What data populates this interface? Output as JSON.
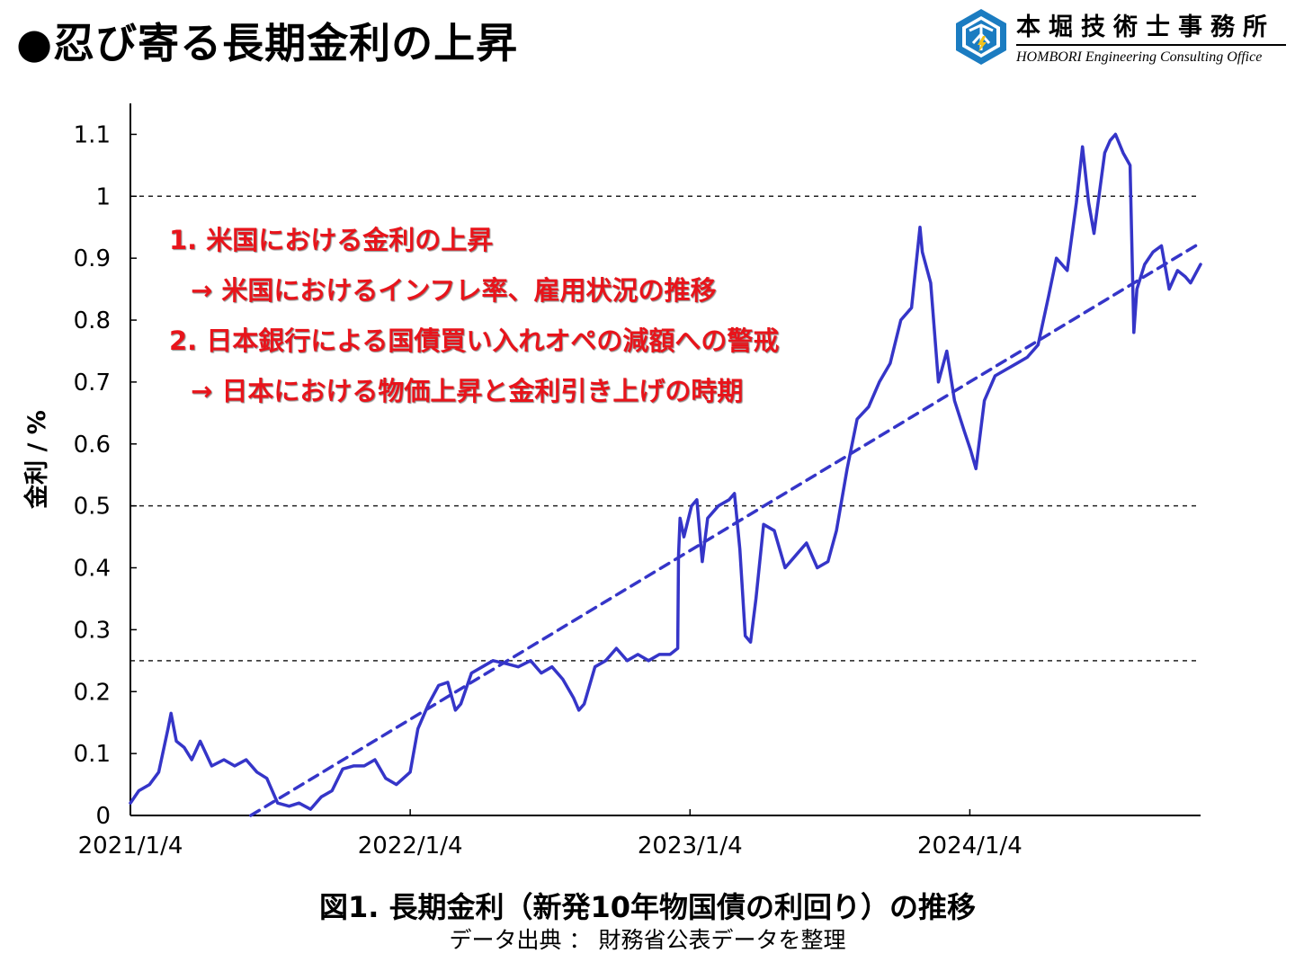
{
  "page_title": "●忍び寄る長期金利の上昇",
  "logo": {
    "name_ja": "本堀技術士事務所",
    "name_en": "HOMBORI Engineering Consulting Office",
    "colors": {
      "primary": "#1b7cc1",
      "accent": "#f3c21b"
    }
  },
  "annotations": [
    "1. 米国における金利の上昇",
    "→ 米国におけるインフレ率、雇用状況の推移",
    "2. 日本銀行による国債買い入れオペの減額への警戒",
    "→ 日本における物価上昇と金利引き上げの時期"
  ],
  "caption": "図1. 長期金利（新発10年物国債の利回り）の推移",
  "source": "データ出典 ： 財務省公表データを整理",
  "chart_data": {
    "type": "line",
    "title": "",
    "xlabel": "",
    "ylabel": "金利 / %",
    "x_ticks": [
      "2021/1/4",
      "2022/1/4",
      "2023/1/4",
      "2024/1/4"
    ],
    "x_range": [
      "2021-01-04",
      "2024-10-31"
    ],
    "y_ticks": [
      "0",
      "0.1",
      "0.2",
      "0.3",
      "0.4",
      "0.5",
      "0.6",
      "0.7",
      "0.8",
      "0.9",
      "1",
      "1.1"
    ],
    "ylim": [
      0,
      1.15
    ],
    "reference_lines": [
      0.25,
      0.5,
      1.0
    ],
    "grid": false,
    "legend": "none",
    "colors": {
      "series": "#3535c8",
      "trend": "#3535c8",
      "reference": "#222222"
    },
    "series": [
      {
        "style": "solid",
        "points": [
          [
            "2021-01-04",
            0.02
          ],
          [
            "2021-01-15",
            0.04
          ],
          [
            "2021-01-29",
            0.05
          ],
          [
            "2021-02-10",
            0.07
          ],
          [
            "2021-02-22",
            0.14
          ],
          [
            "2021-02-26",
            0.165
          ],
          [
            "2021-03-05",
            0.12
          ],
          [
            "2021-03-15",
            0.11
          ],
          [
            "2021-03-25",
            0.09
          ],
          [
            "2021-04-05",
            0.12
          ],
          [
            "2021-04-20",
            0.08
          ],
          [
            "2021-05-06",
            0.09
          ],
          [
            "2021-05-20",
            0.08
          ],
          [
            "2021-06-04",
            0.09
          ],
          [
            "2021-06-18",
            0.07
          ],
          [
            "2021-07-01",
            0.06
          ],
          [
            "2021-07-15",
            0.02
          ],
          [
            "2021-07-30",
            0.015
          ],
          [
            "2021-08-12",
            0.02
          ],
          [
            "2021-08-27",
            0.01
          ],
          [
            "2021-09-10",
            0.03
          ],
          [
            "2021-09-24",
            0.04
          ],
          [
            "2021-10-08",
            0.075
          ],
          [
            "2021-10-22",
            0.08
          ],
          [
            "2021-11-05",
            0.08
          ],
          [
            "2021-11-19",
            0.09
          ],
          [
            "2021-12-03",
            0.06
          ],
          [
            "2021-12-17",
            0.05
          ],
          [
            "2022-01-04",
            0.07
          ],
          [
            "2022-01-14",
            0.14
          ],
          [
            "2022-01-28",
            0.18
          ],
          [
            "2022-02-10",
            0.21
          ],
          [
            "2022-02-22",
            0.215
          ],
          [
            "2022-03-04",
            0.17
          ],
          [
            "2022-03-11",
            0.18
          ],
          [
            "2022-03-25",
            0.23
          ],
          [
            "2022-04-08",
            0.24
          ],
          [
            "2022-04-22",
            0.25
          ],
          [
            "2022-05-10",
            0.245
          ],
          [
            "2022-05-25",
            0.24
          ],
          [
            "2022-06-10",
            0.25
          ],
          [
            "2022-06-24",
            0.23
          ],
          [
            "2022-07-08",
            0.24
          ],
          [
            "2022-07-22",
            0.22
          ],
          [
            "2022-08-05",
            0.19
          ],
          [
            "2022-08-12",
            0.17
          ],
          [
            "2022-08-19",
            0.18
          ],
          [
            "2022-09-02",
            0.24
          ],
          [
            "2022-09-16",
            0.25
          ],
          [
            "2022-09-30",
            0.27
          ],
          [
            "2022-10-14",
            0.25
          ],
          [
            "2022-10-28",
            0.26
          ],
          [
            "2022-11-11",
            0.25
          ],
          [
            "2022-11-25",
            0.26
          ],
          [
            "2022-12-09",
            0.26
          ],
          [
            "2022-12-19",
            0.27
          ],
          [
            "2022-12-20",
            0.42
          ],
          [
            "2022-12-22",
            0.48
          ],
          [
            "2022-12-27",
            0.45
          ],
          [
            "2023-01-06",
            0.5
          ],
          [
            "2023-01-13",
            0.51
          ],
          [
            "2023-01-20",
            0.41
          ],
          [
            "2023-01-27",
            0.48
          ],
          [
            "2023-02-10",
            0.5
          ],
          [
            "2023-02-24",
            0.51
          ],
          [
            "2023-03-03",
            0.52
          ],
          [
            "2023-03-10",
            0.43
          ],
          [
            "2023-03-17",
            0.29
          ],
          [
            "2023-03-24",
            0.28
          ],
          [
            "2023-03-31",
            0.35
          ],
          [
            "2023-04-10",
            0.47
          ],
          [
            "2023-04-24",
            0.46
          ],
          [
            "2023-05-08",
            0.4
          ],
          [
            "2023-05-22",
            0.42
          ],
          [
            "2023-06-05",
            0.44
          ],
          [
            "2023-06-19",
            0.4
          ],
          [
            "2023-07-03",
            0.41
          ],
          [
            "2023-07-14",
            0.46
          ],
          [
            "2023-07-28",
            0.56
          ],
          [
            "2023-08-10",
            0.64
          ],
          [
            "2023-08-25",
            0.66
          ],
          [
            "2023-09-08",
            0.7
          ],
          [
            "2023-09-22",
            0.73
          ],
          [
            "2023-10-06",
            0.8
          ],
          [
            "2023-10-20",
            0.82
          ],
          [
            "2023-10-31",
            0.95
          ],
          [
            "2023-11-03",
            0.91
          ],
          [
            "2023-11-14",
            0.86
          ],
          [
            "2023-11-24",
            0.7
          ],
          [
            "2023-12-05",
            0.75
          ],
          [
            "2023-12-15",
            0.67
          ],
          [
            "2023-12-28",
            0.62
          ],
          [
            "2024-01-05",
            0.59
          ],
          [
            "2024-01-12",
            0.56
          ],
          [
            "2024-01-23",
            0.67
          ],
          [
            "2024-02-06",
            0.71
          ],
          [
            "2024-02-20",
            0.72
          ],
          [
            "2024-03-05",
            0.73
          ],
          [
            "2024-03-19",
            0.74
          ],
          [
            "2024-04-02",
            0.76
          ],
          [
            "2024-04-16",
            0.84
          ],
          [
            "2024-04-26",
            0.9
          ],
          [
            "2024-05-10",
            0.88
          ],
          [
            "2024-05-22",
            0.99
          ],
          [
            "2024-05-30",
            1.08
          ],
          [
            "2024-06-07",
            0.99
          ],
          [
            "2024-06-14",
            0.94
          ],
          [
            "2024-06-28",
            1.07
          ],
          [
            "2024-07-05",
            1.09
          ],
          [
            "2024-07-12",
            1.1
          ],
          [
            "2024-07-22",
            1.07
          ],
          [
            "2024-07-31",
            1.05
          ],
          [
            "2024-08-05",
            0.78
          ],
          [
            "2024-08-09",
            0.85
          ],
          [
            "2024-08-19",
            0.89
          ],
          [
            "2024-08-30",
            0.91
          ],
          [
            "2024-09-10",
            0.92
          ],
          [
            "2024-09-20",
            0.85
          ],
          [
            "2024-10-01",
            0.88
          ],
          [
            "2024-10-11",
            0.87
          ],
          [
            "2024-10-18",
            0.86
          ],
          [
            "2024-10-31",
            0.89
          ]
        ]
      },
      {
        "style": "dashed",
        "points": [
          [
            "2021-06-10",
            0.0
          ],
          [
            "2024-10-31",
            0.925
          ]
        ]
      }
    ]
  }
}
